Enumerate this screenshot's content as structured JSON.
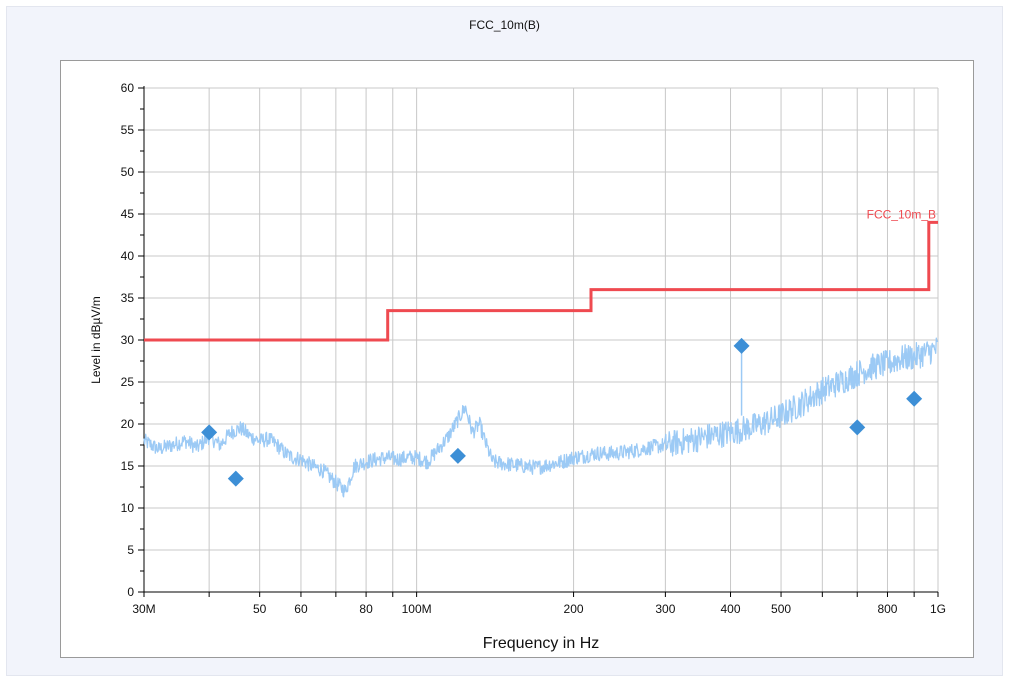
{
  "title": "FCC_10m(B)",
  "colors": {
    "limit": "#ef4a50",
    "trace": "#9ccaf5",
    "marker": "#3d8fd6",
    "grid": "#c8c8c8",
    "axis": "#000000",
    "frame_bg": "#f2f4fb"
  },
  "chart_data": {
    "type": "line",
    "title": "FCC_10m(B)",
    "xlabel": "Frequency in Hz",
    "ylabel": "Level in dBµV/m",
    "x_scale": "log",
    "xlim": [
      30000000,
      1000000000
    ],
    "ylim": [
      0,
      60
    ],
    "grid": true,
    "x_ticks": [
      {
        "value": 30000000,
        "label": "30M"
      },
      {
        "value": 50000000,
        "label": "50"
      },
      {
        "value": 60000000,
        "label": "60"
      },
      {
        "value": 80000000,
        "label": "80"
      },
      {
        "value": 100000000,
        "label": "100M"
      },
      {
        "value": 200000000,
        "label": "200"
      },
      {
        "value": 300000000,
        "label": "300"
      },
      {
        "value": 400000000,
        "label": "400"
      },
      {
        "value": 500000000,
        "label": "500"
      },
      {
        "value": 800000000,
        "label": "800"
      },
      {
        "value": 1000000000,
        "label": "1G"
      }
    ],
    "x_grid": [
      30000000,
      40000000,
      50000000,
      60000000,
      70000000,
      80000000,
      90000000,
      100000000,
      200000000,
      300000000,
      400000000,
      500000000,
      600000000,
      700000000,
      800000000,
      900000000,
      1000000000
    ],
    "y_ticks": [
      {
        "value": 0,
        "label": "0"
      },
      {
        "value": 5,
        "label": "5"
      },
      {
        "value": 10,
        "label": "10"
      },
      {
        "value": 15,
        "label": "15"
      },
      {
        "value": 20,
        "label": "20"
      },
      {
        "value": 25,
        "label": "25"
      },
      {
        "value": 30,
        "label": "30"
      },
      {
        "value": 35,
        "label": "35"
      },
      {
        "value": 40,
        "label": "40"
      },
      {
        "value": 45,
        "label": "45"
      },
      {
        "value": 50,
        "label": "50"
      },
      {
        "value": 55,
        "label": "55"
      },
      {
        "value": 60,
        "label": "60"
      }
    ],
    "limit_line": {
      "name": "FCC_10m_B",
      "points": [
        [
          30000000,
          30
        ],
        [
          88000000,
          30
        ],
        [
          88000000,
          33.5
        ],
        [
          216000000,
          33.5
        ],
        [
          216000000,
          36
        ],
        [
          960000000,
          36
        ],
        [
          960000000,
          44
        ],
        [
          1000000000,
          44
        ]
      ]
    },
    "trace": {
      "points": [
        [
          30000000,
          18
        ],
        [
          32000000,
          17
        ],
        [
          34000000,
          17.5
        ],
        [
          36000000,
          18
        ],
        [
          38000000,
          17.2
        ],
        [
          40000000,
          18.5
        ],
        [
          42000000,
          17.5
        ],
        [
          44000000,
          19
        ],
        [
          46000000,
          19.5
        ],
        [
          48000000,
          18.5
        ],
        [
          50000000,
          18
        ],
        [
          52000000,
          18.2
        ],
        [
          54000000,
          17.5
        ],
        [
          56000000,
          16.5
        ],
        [
          58000000,
          16
        ],
        [
          60000000,
          15.8
        ],
        [
          63000000,
          15
        ],
        [
          66000000,
          14.5
        ],
        [
          70000000,
          13
        ],
        [
          73000000,
          12
        ],
        [
          76000000,
          15
        ],
        [
          80000000,
          15.5
        ],
        [
          84000000,
          15.8
        ],
        [
          88000000,
          16
        ],
        [
          92000000,
          15.8
        ],
        [
          96000000,
          16
        ],
        [
          100000000,
          16
        ],
        [
          105000000,
          15.5
        ],
        [
          110000000,
          17
        ],
        [
          115000000,
          18.5
        ],
        [
          120000000,
          20.5
        ],
        [
          124000000,
          22
        ],
        [
          128000000,
          19
        ],
        [
          132000000,
          20
        ],
        [
          136000000,
          17.5
        ],
        [
          140000000,
          15.5
        ],
        [
          150000000,
          15.2
        ],
        [
          160000000,
          15
        ],
        [
          170000000,
          14.8
        ],
        [
          180000000,
          15.2
        ],
        [
          190000000,
          15.5
        ],
        [
          200000000,
          16
        ],
        [
          210000000,
          16.2
        ],
        [
          220000000,
          16.5
        ],
        [
          240000000,
          16.5
        ],
        [
          260000000,
          16.8
        ],
        [
          280000000,
          17.2
        ],
        [
          300000000,
          17.5
        ],
        [
          330000000,
          18
        ],
        [
          360000000,
          18.5
        ],
        [
          400000000,
          19
        ],
        [
          430000000,
          19.5
        ],
        [
          460000000,
          20
        ],
        [
          500000000,
          21
        ],
        [
          550000000,
          22.5
        ],
        [
          600000000,
          24
        ],
        [
          650000000,
          25
        ],
        [
          700000000,
          26
        ],
        [
          750000000,
          26.8
        ],
        [
          800000000,
          27.2
        ],
        [
          850000000,
          27.8
        ],
        [
          900000000,
          28
        ],
        [
          950000000,
          28.5
        ],
        [
          1000000000,
          29
        ]
      ]
    },
    "spike": {
      "x": 420000000,
      "y_from": 21,
      "y_to": 29.3
    },
    "markers": [
      {
        "x": 40000000,
        "y": 19
      },
      {
        "x": 45000000,
        "y": 13.5
      },
      {
        "x": 120000000,
        "y": 16.2
      },
      {
        "x": 420000000,
        "y": 29.3
      },
      {
        "x": 700000000,
        "y": 19.6
      },
      {
        "x": 900000000,
        "y": 23
      }
    ]
  }
}
